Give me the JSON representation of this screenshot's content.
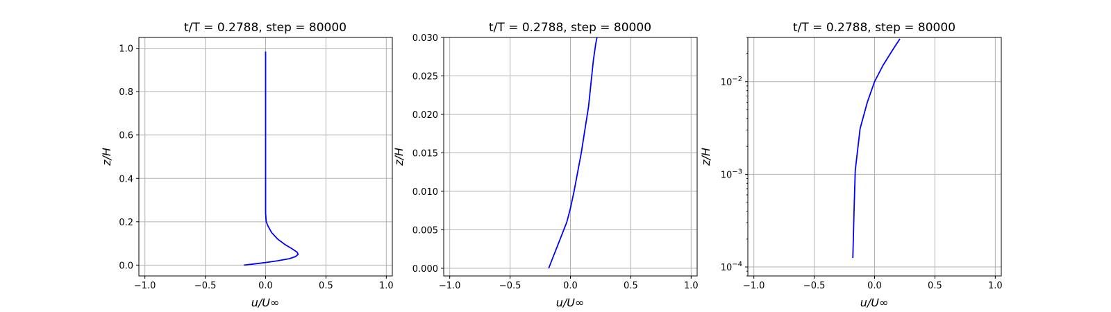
{
  "chart_data": [
    {
      "type": "line",
      "title": "t/T = 0.2788, step = 80000",
      "xlabel": "u/U∞",
      "ylabel": "z/H",
      "xlim": [
        -1.05,
        1.05
      ],
      "ylim": [
        -0.05,
        1.05
      ],
      "yscale": "linear",
      "grid": true,
      "xticks": [
        -1.0,
        -0.5,
        0.0,
        0.5,
        1.0
      ],
      "xtick_labels": [
        "−1.0",
        "−0.5",
        "0.0",
        "0.5",
        "1.0"
      ],
      "yticks": [
        0.0,
        0.2,
        0.4,
        0.6,
        0.8,
        1.0
      ],
      "ytick_labels": [
        "0.0",
        "0.2",
        "0.4",
        "0.6",
        "0.8",
        "1.0"
      ],
      "series": [
        {
          "color": "#0000ff",
          "x": [
            -0.18,
            -0.1,
            0.0,
            0.1,
            0.2,
            0.25,
            0.27,
            0.26,
            0.22,
            0.16,
            0.1,
            0.05,
            0.02,
            0.005,
            0.0,
            0.0,
            0.0,
            0.0,
            0.0,
            0.0
          ],
          "y": [
            0.0,
            0.005,
            0.012,
            0.02,
            0.03,
            0.04,
            0.05,
            0.06,
            0.075,
            0.095,
            0.12,
            0.15,
            0.18,
            0.2,
            0.24,
            0.3,
            0.4,
            0.6,
            0.8,
            0.985
          ]
        }
      ]
    },
    {
      "type": "line",
      "title": "t/T = 0.2788, step = 80000",
      "xlabel": "u/U∞",
      "ylabel": "z/H",
      "xlim": [
        -1.05,
        1.05
      ],
      "ylim": [
        -0.001,
        0.03
      ],
      "yscale": "linear",
      "grid": true,
      "xticks": [
        -1.0,
        -0.5,
        0.0,
        0.5,
        1.0
      ],
      "xtick_labels": [
        "−1.0",
        "−0.5",
        "0.0",
        "0.5",
        "1.0"
      ],
      "yticks": [
        0.0,
        0.005,
        0.01,
        0.015,
        0.02,
        0.025,
        0.03
      ],
      "ytick_labels": [
        "0.000",
        "0.005",
        "0.010",
        "0.015",
        "0.020",
        "0.025",
        "0.030"
      ],
      "series": [
        {
          "color": "#0000ff",
          "x": [
            -0.18,
            -0.13,
            -0.08,
            -0.03,
            0.0,
            0.03,
            0.06,
            0.09,
            0.12,
            0.15,
            0.17,
            0.19,
            0.21,
            0.22
          ],
          "y": [
            0.0,
            0.002,
            0.004,
            0.006,
            0.0078,
            0.01,
            0.0125,
            0.015,
            0.018,
            0.021,
            0.024,
            0.027,
            0.0292,
            0.03
          ]
        }
      ]
    },
    {
      "type": "line",
      "title": "t/T = 0.2788, step = 80000",
      "xlabel": "u/U∞",
      "ylabel": "z/H",
      "xlim": [
        -1.05,
        1.05
      ],
      "ylim": [
        8e-05,
        0.03
      ],
      "yscale": "log",
      "grid": true,
      "xticks": [
        -1.0,
        -0.5,
        0.0,
        0.5,
        1.0
      ],
      "xtick_labels": [
        "−1.0",
        "−0.5",
        "0.0",
        "0.5",
        "1.0"
      ],
      "yticks": [
        0.0001,
        0.001,
        0.01
      ],
      "ytick_labels": [
        "10",
        "10",
        "10"
      ],
      "ytick_exponents": [
        "−4",
        "−3",
        "−2"
      ],
      "series": [
        {
          "color": "#0000ff",
          "x": [
            -0.18,
            -0.17,
            -0.16,
            -0.12,
            -0.06,
            0.0,
            0.07,
            0.15,
            0.21
          ],
          "y": [
            0.000125,
            0.0004,
            0.0011,
            0.0031,
            0.006,
            0.01,
            0.015,
            0.022,
            0.029
          ]
        }
      ]
    }
  ]
}
